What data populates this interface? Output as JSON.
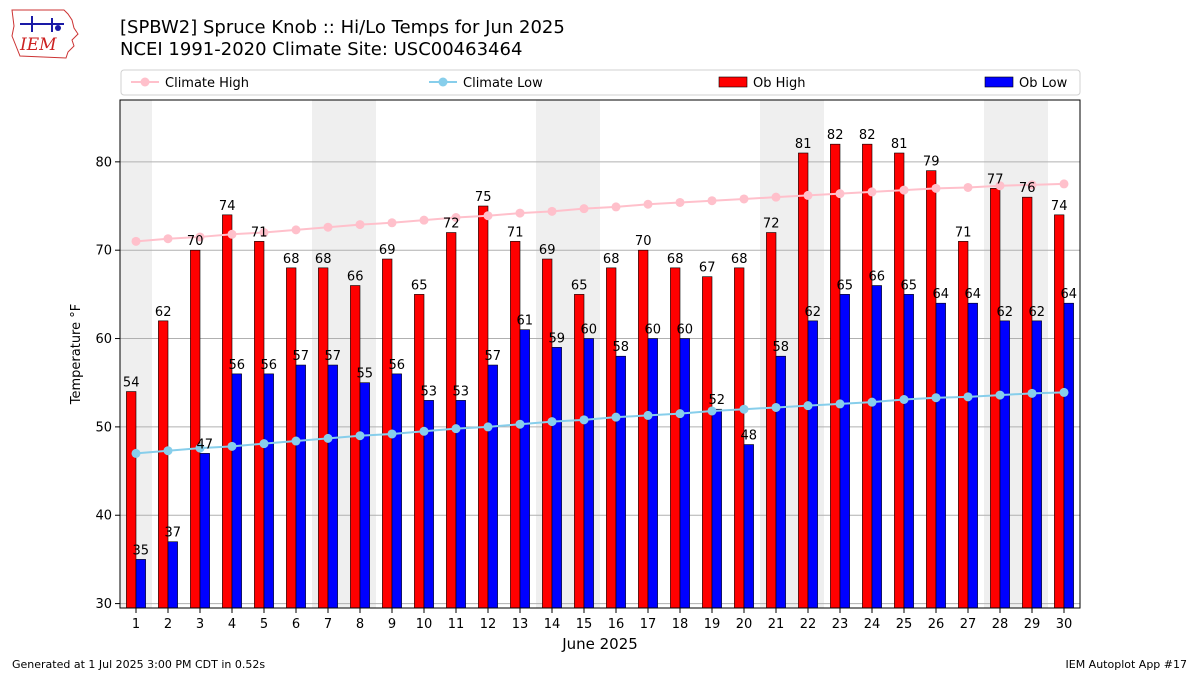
{
  "header": {
    "title_line1": "[SPBW2] Spruce Knob :: Hi/Lo Temps for Jun 2025",
    "title_line2": "NCEI 1991-2020 Climate Site: USC00463464",
    "logo_text": "IEM"
  },
  "footer": {
    "generated": "Generated at 1 Jul 2025 3:00 PM CDT in 0.52s",
    "app": "IEM Autoplot App #17"
  },
  "chart_data": {
    "type": "bar",
    "xlabel": "June 2025",
    "ylabel": "Temperature °F",
    "ylim": [
      29.5,
      87
    ],
    "yticks": [
      30,
      40,
      50,
      60,
      70,
      80
    ],
    "grid": "horizontal",
    "legend_placement": "top",
    "weekend_shading_days": [
      1,
      7,
      8,
      14,
      15,
      21,
      22,
      28,
      29
    ],
    "categories": [
      "1",
      "2",
      "3",
      "4",
      "5",
      "6",
      "7",
      "8",
      "9",
      "10",
      "11",
      "12",
      "13",
      "14",
      "15",
      "16",
      "17",
      "18",
      "19",
      "20",
      "21",
      "22",
      "23",
      "24",
      "25",
      "26",
      "27",
      "28",
      "29",
      "30"
    ],
    "series": [
      {
        "name": "Climate High",
        "kind": "line",
        "color": "#ffc0cb",
        "values": [
          71.0,
          71.3,
          71.5,
          71.8,
          72.0,
          72.3,
          72.6,
          72.9,
          73.1,
          73.4,
          73.7,
          73.9,
          74.2,
          74.4,
          74.7,
          74.9,
          75.2,
          75.4,
          75.6,
          75.8,
          76.0,
          76.2,
          76.4,
          76.6,
          76.8,
          77.0,
          77.1,
          77.3,
          77.4,
          77.5
        ]
      },
      {
        "name": "Climate Low",
        "kind": "line",
        "color": "#87ceeb",
        "values": [
          47.0,
          47.3,
          47.6,
          47.8,
          48.1,
          48.4,
          48.7,
          49.0,
          49.2,
          49.5,
          49.8,
          50.0,
          50.3,
          50.6,
          50.8,
          51.1,
          51.3,
          51.5,
          51.8,
          52.0,
          52.2,
          52.4,
          52.6,
          52.8,
          53.1,
          53.3,
          53.4,
          53.6,
          53.8,
          53.9
        ]
      },
      {
        "name": "Ob High",
        "kind": "bar",
        "color": "#ff0000",
        "values": [
          54,
          62,
          70,
          74,
          71,
          68,
          68,
          66,
          69,
          65,
          72,
          75,
          71,
          69,
          65,
          68,
          70,
          68,
          67,
          68,
          72,
          81,
          82,
          82,
          81,
          79,
          71,
          77,
          76,
          74
        ]
      },
      {
        "name": "Ob Low",
        "kind": "bar",
        "color": "#0000ff",
        "values": [
          35,
          37,
          47,
          56,
          56,
          57,
          57,
          55,
          56,
          53,
          53,
          57,
          61,
          59,
          60,
          58,
          60,
          60,
          52,
          48,
          58,
          62,
          65,
          66,
          65,
          64,
          64,
          62,
          62,
          64
        ]
      }
    ]
  }
}
